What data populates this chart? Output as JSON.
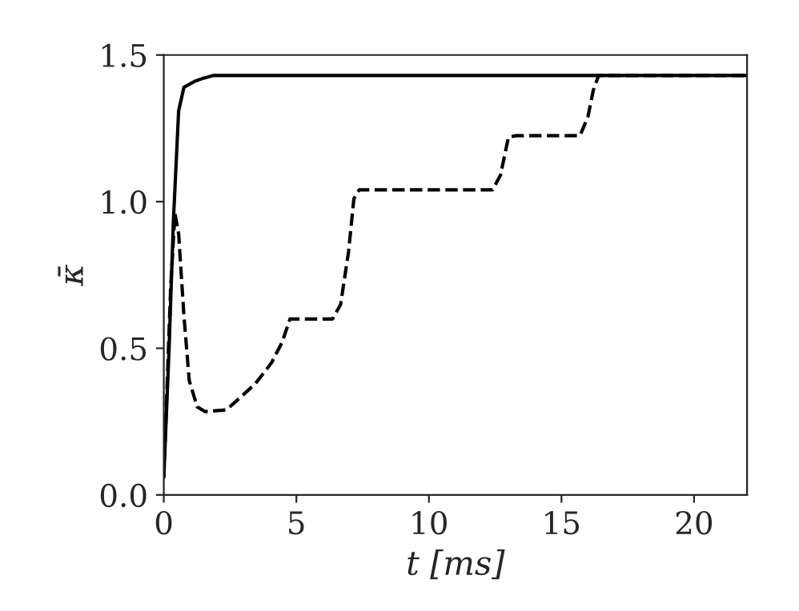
{
  "chart_data": {
    "type": "line",
    "xlabel": "t [ms]",
    "ylabel": "κ̄",
    "xlim": [
      0,
      22
    ],
    "ylim": [
      0,
      1.5
    ],
    "xticks": [
      0,
      5,
      10,
      15,
      20
    ],
    "yticks": [
      {
        "value": 0,
        "label": "0.0"
      },
      {
        "value": 0.5,
        "label": "0.5"
      },
      {
        "value": 1.0,
        "label": "1.0"
      },
      {
        "value": 1.5,
        "label": "1.5"
      }
    ],
    "marker": "none",
    "series": [
      {
        "color": "#000000",
        "line_style": "solid",
        "x": [
          0,
          0.2,
          0.36,
          0.56,
          0.76,
          1.16,
          1.46,
          1.86,
          22
        ],
        "values": [
          0.06,
          0.5,
          0.93,
          1.31,
          1.39,
          1.41,
          1.42,
          1.43,
          1.43
        ]
      },
      {
        "color": "#000000",
        "line_style": "dashed",
        "x": [
          0,
          0.26,
          0.42,
          0.56,
          0.76,
          0.96,
          1.26,
          1.56,
          2.36,
          2.86,
          3.46,
          4.06,
          4.46,
          4.76,
          6.37,
          6.67,
          6.97,
          7.17,
          7.37,
          12.4,
          12.7,
          13.0,
          13.3,
          15.7,
          16.0,
          16.2,
          16.4,
          22
        ],
        "values": [
          0.06,
          0.71,
          0.96,
          0.89,
          0.61,
          0.39,
          0.3,
          0.284,
          0.29,
          0.33,
          0.38,
          0.45,
          0.52,
          0.6,
          0.6,
          0.65,
          0.83,
          1.01,
          1.04,
          1.04,
          1.09,
          1.22,
          1.225,
          1.225,
          1.29,
          1.38,
          1.43,
          1.43
        ]
      }
    ]
  }
}
